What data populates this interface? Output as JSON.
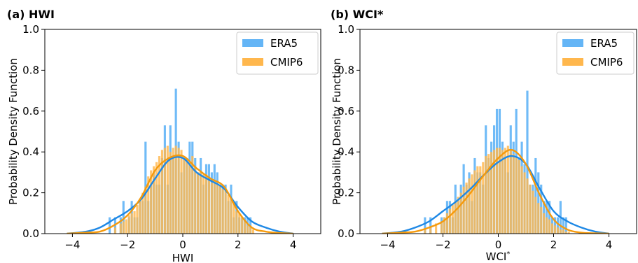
{
  "colors": {
    "era5": "#64b5f6",
    "cmip6": "#ffb74d",
    "era5_kde": "#1e88e5",
    "cmip6_kde": "#f59a0c"
  },
  "chart_data": [
    {
      "type": "bar",
      "panel_title": "(a) HWI",
      "xlabel": "HWI",
      "ylabel": "Probability Density Function",
      "xlim": [
        -5,
        5
      ],
      "ylim": [
        0,
        1.0
      ],
      "xticks": [
        "−4",
        "−2",
        "0",
        "2",
        "4"
      ],
      "yticks": [
        "0.0",
        "0.2",
        "0.4",
        "0.6",
        "0.8",
        "1.0"
      ],
      "legend": {
        "position": "upper right",
        "entries": [
          "ERA5",
          "CMIP6"
        ]
      },
      "bin_width": 0.1,
      "bin_starts": [
        -2.7,
        -2.5,
        -2.3,
        -2.2,
        -2.1,
        -2.0,
        -1.9,
        -1.8,
        -1.7,
        -1.6,
        -1.5,
        -1.4,
        -1.3,
        -1.2,
        -1.1,
        -1.0,
        -0.9,
        -0.8,
        -0.7,
        -0.6,
        -0.5,
        -0.4,
        -0.3,
        -0.2,
        -0.1,
        0.0,
        0.1,
        0.2,
        0.3,
        0.4,
        0.5,
        0.6,
        0.7,
        0.8,
        0.9,
        1.0,
        1.1,
        1.2,
        1.3,
        1.4,
        1.5,
        1.6,
        1.7,
        1.8,
        1.9,
        2.0,
        2.1,
        2.2,
        2.3,
        2.4,
        2.5
      ],
      "series": [
        {
          "name": "ERA5",
          "values": [
            0.08,
            0.08,
            0.08,
            0.16,
            0.0,
            0.08,
            0.16,
            0.08,
            0.08,
            0.16,
            0.16,
            0.45,
            0.16,
            0.24,
            0.3,
            0.24,
            0.24,
            0.37,
            0.53,
            0.24,
            0.53,
            0.37,
            0.71,
            0.45,
            0.3,
            0.37,
            0.37,
            0.45,
            0.45,
            0.37,
            0.3,
            0.37,
            0.24,
            0.34,
            0.34,
            0.3,
            0.34,
            0.3,
            0.24,
            0.24,
            0.24,
            0.16,
            0.24,
            0.08,
            0.16,
            0.08,
            0.08,
            0.08,
            0.08,
            0.08,
            0.0
          ]
        },
        {
          "name": "CMIP6",
          "values": [
            0.0,
            0.03,
            0.05,
            0.06,
            0.07,
            0.09,
            0.1,
            0.11,
            0.14,
            0.17,
            0.2,
            0.23,
            0.28,
            0.31,
            0.33,
            0.35,
            0.38,
            0.41,
            0.42,
            0.43,
            0.4,
            0.42,
            0.43,
            0.42,
            0.41,
            0.36,
            0.36,
            0.35,
            0.38,
            0.33,
            0.3,
            0.3,
            0.29,
            0.29,
            0.26,
            0.25,
            0.26,
            0.25,
            0.24,
            0.22,
            0.22,
            0.19,
            0.18,
            0.15,
            0.11,
            0.1,
            0.08,
            0.06,
            0.04,
            0.03,
            0.02
          ]
        }
      ],
      "kde": [
        {
          "name": "ERA5",
          "x": [
            -4.2,
            -3.5,
            -3.0,
            -2.5,
            -2.0,
            -1.5,
            -1.0,
            -0.5,
            0.0,
            0.5,
            1.0,
            1.5,
            2.0,
            2.5,
            3.0,
            3.5,
            4.0
          ],
          "y": [
            0.0,
            0.01,
            0.03,
            0.07,
            0.11,
            0.17,
            0.27,
            0.36,
            0.37,
            0.3,
            0.26,
            0.22,
            0.13,
            0.06,
            0.03,
            0.01,
            0.0
          ]
        },
        {
          "name": "CMIP6",
          "x": [
            -4.2,
            -3.5,
            -3.0,
            -2.5,
            -2.0,
            -1.5,
            -1.0,
            -0.5,
            0.0,
            0.5,
            1.0,
            1.5,
            2.0,
            2.5,
            3.0,
            3.5,
            4.0
          ],
          "y": [
            0.0,
            0.005,
            0.01,
            0.04,
            0.09,
            0.18,
            0.31,
            0.37,
            0.38,
            0.32,
            0.27,
            0.23,
            0.11,
            0.03,
            0.01,
            0.003,
            0.0
          ]
        }
      ]
    },
    {
      "type": "bar",
      "panel_title": "(b) WCI*",
      "xlabel": "WCI",
      "xlabel_sup": "*",
      "ylabel": "Probability Density Function",
      "xlim": [
        -5,
        5
      ],
      "ylim": [
        0,
        1.0
      ],
      "xticks": [
        "−4",
        "−2",
        "0",
        "2",
        "4"
      ],
      "yticks": [
        "0.0",
        "0.2",
        "0.4",
        "0.6",
        "0.8",
        "1.0"
      ],
      "legend": {
        "position": "upper right",
        "entries": [
          "ERA5",
          "CMIP6"
        ]
      },
      "bin_width": 0.1,
      "bin_starts": [
        -2.7,
        -2.5,
        -2.3,
        -2.1,
        -2.0,
        -1.9,
        -1.8,
        -1.7,
        -1.6,
        -1.5,
        -1.4,
        -1.3,
        -1.2,
        -1.1,
        -1.0,
        -0.9,
        -0.8,
        -0.7,
        -0.6,
        -0.5,
        -0.4,
        -0.3,
        -0.2,
        -0.1,
        0.0,
        0.1,
        0.2,
        0.3,
        0.4,
        0.5,
        0.6,
        0.7,
        0.8,
        0.9,
        1.0,
        1.1,
        1.2,
        1.3,
        1.4,
        1.5,
        1.6,
        1.7,
        1.8,
        1.9,
        2.0,
        2.1,
        2.2,
        2.3,
        2.4,
        2.5
      ],
      "series": [
        {
          "name": "ERA5",
          "values": [
            0.08,
            0.08,
            0.0,
            0.08,
            0.08,
            0.16,
            0.16,
            0.08,
            0.24,
            0.16,
            0.24,
            0.34,
            0.24,
            0.3,
            0.16,
            0.37,
            0.3,
            0.3,
            0.24,
            0.53,
            0.37,
            0.45,
            0.53,
            0.61,
            0.61,
            0.45,
            0.37,
            0.3,
            0.53,
            0.45,
            0.61,
            0.37,
            0.45,
            0.34,
            0.7,
            0.24,
            0.24,
            0.37,
            0.3,
            0.24,
            0.16,
            0.16,
            0.16,
            0.08,
            0.08,
            0.08,
            0.16,
            0.08,
            0.08,
            0.0
          ]
        },
        {
          "name": "CMIP6",
          "values": [
            0.02,
            0.03,
            0.05,
            0.06,
            0.08,
            0.1,
            0.12,
            0.14,
            0.16,
            0.18,
            0.2,
            0.23,
            0.25,
            0.27,
            0.29,
            0.31,
            0.33,
            0.33,
            0.35,
            0.38,
            0.39,
            0.4,
            0.41,
            0.42,
            0.42,
            0.41,
            0.42,
            0.43,
            0.41,
            0.39,
            0.37,
            0.36,
            0.33,
            0.3,
            0.27,
            0.24,
            0.21,
            0.18,
            0.15,
            0.13,
            0.1,
            0.08,
            0.07,
            0.05,
            0.04,
            0.03,
            0.02,
            0.02,
            0.01,
            0.01
          ]
        }
      ],
      "kde": [
        {
          "name": "ERA5",
          "x": [
            -4.2,
            -3.5,
            -3.0,
            -2.5,
            -2.0,
            -1.5,
            -1.0,
            -0.5,
            0.0,
            0.5,
            1.0,
            1.5,
            2.0,
            2.5,
            3.0,
            3.5,
            4.0
          ],
          "y": [
            0.0,
            0.01,
            0.03,
            0.06,
            0.11,
            0.16,
            0.22,
            0.29,
            0.35,
            0.38,
            0.34,
            0.22,
            0.11,
            0.06,
            0.03,
            0.01,
            0.0
          ]
        },
        {
          "name": "CMIP6",
          "x": [
            -4.2,
            -3.5,
            -3.0,
            -2.5,
            -2.0,
            -1.5,
            -1.0,
            -0.5,
            0.0,
            0.5,
            1.0,
            1.5,
            2.0,
            2.5,
            3.0,
            3.5,
            4.0
          ],
          "y": [
            0.0,
            0.005,
            0.01,
            0.03,
            0.06,
            0.12,
            0.2,
            0.29,
            0.37,
            0.41,
            0.34,
            0.19,
            0.07,
            0.02,
            0.005,
            0.002,
            0.0
          ]
        }
      ]
    }
  ]
}
